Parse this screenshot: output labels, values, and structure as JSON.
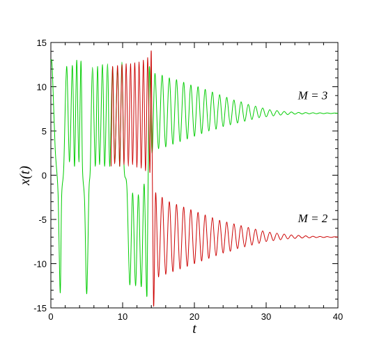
{
  "chart_data": {
    "type": "line",
    "title": "",
    "xlabel": "t",
    "ylabel": "x(t)",
    "xlim": [
      0,
      40
    ],
    "ylim": [
      -15,
      15
    ],
    "xticks": [
      0,
      10,
      20,
      30,
      40
    ],
    "yticks": [
      -15,
      -10,
      -5,
      0,
      5,
      10,
      15
    ],
    "grid": false,
    "legend": "none",
    "annotations": [
      {
        "text": "M = 3",
        "x": 36.5,
        "y": 8.6,
        "series": "M = 3"
      },
      {
        "text": "M = 2",
        "x": 36.5,
        "y": -5.3,
        "series": "M = 2"
      }
    ],
    "series": [
      {
        "name": "M = 3",
        "color": "#00cc00",
        "x": [
          0.0,
          0.2,
          0.6,
          1.0,
          1.3,
          1.5,
          1.8,
          2.2,
          2.6,
          3.0,
          3.3,
          3.6,
          3.9,
          4.2,
          4.4,
          4.7,
          5.0,
          5.3,
          5.5,
          5.8,
          6.2,
          6.5,
          6.8,
          7.2,
          7.5,
          7.9,
          8.2,
          8.6,
          8.9,
          9.3,
          9.6,
          9.9,
          10.2,
          10.6,
          11.0,
          11.4,
          11.8,
          12.2,
          12.6,
          13.0,
          13.4,
          13.7,
          14.1,
          14.5,
          15.0,
          15.5,
          16.0,
          16.5,
          17.0,
          17.5,
          18.0,
          18.5,
          19.0,
          19.5,
          20.0,
          20.5,
          21.0,
          21.5,
          22.0,
          22.5,
          23.0,
          23.5,
          24.0,
          24.5,
          25.0,
          25.5,
          26.0,
          26.5,
          27.0,
          27.5,
          28.0,
          28.5,
          29.0,
          29.5,
          30.0,
          30.5,
          31.0,
          31.5,
          32.0,
          32.5,
          33.0,
          33.5,
          34.0,
          34.5,
          35.0,
          35.5,
          36.0,
          36.5,
          37.0,
          37.5,
          38.0,
          38.5,
          39.0,
          39.5,
          40.0
        ],
        "y": [
          13.0,
          12.0,
          3.0,
          -2.0,
          -13.3,
          -2.5,
          1.0,
          12.3,
          1.5,
          12.4,
          1.0,
          13.0,
          1.5,
          12.9,
          1.0,
          -3.0,
          -13.4,
          -2.0,
          1.0,
          12.2,
          1.0,
          12.3,
          1.2,
          12.5,
          1.0,
          12.6,
          1.0,
          12.2,
          1.5,
          12.0,
          1.0,
          12.8,
          1.0,
          -1.5,
          -12.4,
          -2.0,
          -12.5,
          -2.2,
          -12.6,
          -1.0,
          -13.5,
          11.9,
          2.5,
          11.5,
          3.0,
          11.3,
          3.2,
          11.0,
          3.5,
          10.8,
          3.8,
          10.5,
          4.1,
          10.2,
          4.4,
          10.0,
          4.7,
          9.7,
          5.0,
          9.4,
          5.2,
          9.1,
          5.5,
          8.8,
          5.7,
          8.5,
          5.9,
          8.3,
          6.1,
          8.0,
          6.3,
          7.8,
          6.5,
          7.6,
          6.6,
          7.4,
          6.7,
          7.3,
          6.8,
          7.2,
          6.85,
          7.15,
          6.9,
          7.1,
          6.92,
          7.08,
          6.94,
          7.06,
          6.95,
          7.05,
          6.96,
          7.04,
          6.97,
          7.03,
          7.0
        ]
      },
      {
        "name": "M = 2",
        "color": "#cc0000",
        "x": [
          8.4,
          8.6,
          8.9,
          9.3,
          9.6,
          9.9,
          10.2,
          10.5,
          10.8,
          11.1,
          11.4,
          11.7,
          12.0,
          12.3,
          12.6,
          12.9,
          13.2,
          13.5,
          13.8,
          14.0,
          14.3,
          14.6,
          15.0,
          15.5,
          16.0,
          16.5,
          17.0,
          17.5,
          18.0,
          18.5,
          19.0,
          19.5,
          20.0,
          20.5,
          21.0,
          21.5,
          22.0,
          22.5,
          23.0,
          23.5,
          24.0,
          24.5,
          25.0,
          25.5,
          26.0,
          26.5,
          27.0,
          27.5,
          28.0,
          28.5,
          29.0,
          29.5,
          30.0,
          30.5,
          31.0,
          31.5,
          32.0,
          32.5,
          33.0,
          33.5,
          34.0,
          34.5,
          35.0,
          35.5,
          36.0,
          36.5,
          37.0,
          37.5,
          38.0,
          38.5,
          39.0,
          39.5,
          40.0
        ],
        "y": [
          1.0,
          12.3,
          1.3,
          12.4,
          1.0,
          12.5,
          1.2,
          12.6,
          1.0,
          12.6,
          1.2,
          12.7,
          0.9,
          12.8,
          0.8,
          13.0,
          0.5,
          13.3,
          0.3,
          13.8,
          -14.5,
          -2.0,
          -11.5,
          -2.5,
          -11.2,
          -3.0,
          -10.9,
          -3.3,
          -10.6,
          -3.6,
          -10.3,
          -3.9,
          -10.0,
          -4.2,
          -9.7,
          -4.5,
          -9.4,
          -4.8,
          -9.1,
          -5.1,
          -8.8,
          -5.3,
          -8.6,
          -5.5,
          -8.3,
          -5.7,
          -8.1,
          -5.9,
          -7.9,
          -6.1,
          -7.7,
          -6.3,
          -7.5,
          -6.45,
          -7.4,
          -6.55,
          -7.3,
          -6.65,
          -7.2,
          -6.75,
          -7.15,
          -6.8,
          -7.1,
          -6.85,
          -7.08,
          -6.9,
          -7.05,
          -6.92,
          -7.04,
          -6.94,
          -7.03,
          -6.96,
          -7.0
        ]
      }
    ]
  }
}
